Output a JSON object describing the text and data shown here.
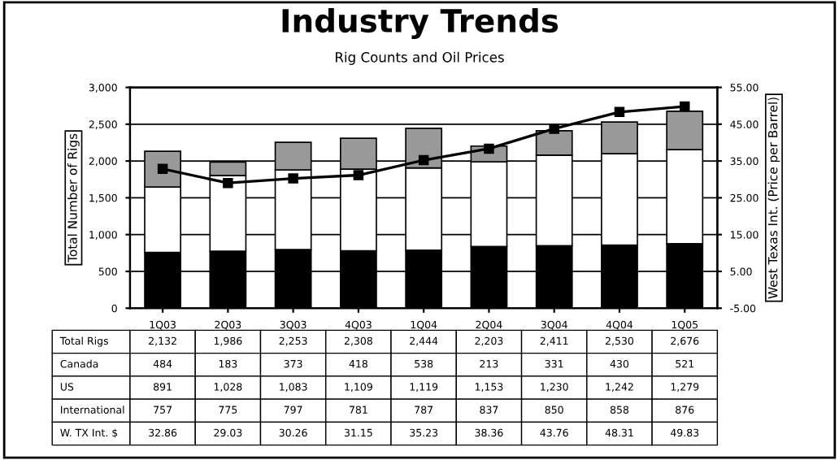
{
  "chart_data": {
    "type": "bar",
    "title": "Industry Trends",
    "subtitle": "Rig Counts and Oil Prices",
    "ylabel": "Total Number of Rigs",
    "y2label": "West Texas Int. (Price per Barrel)",
    "categories": [
      "1Q03",
      "2Q03",
      "3Q03",
      "4Q03",
      "1Q04",
      "2Q04",
      "3Q04",
      "4Q04",
      "1Q05"
    ],
    "stacked": true,
    "grid": "y",
    "legend": false,
    "ylim": [
      0,
      3000
    ],
    "yticks": [
      0,
      {
        "value": 500,
        "label": "500"
      },
      {
        "value": 1000,
        "label": "1,000"
      },
      {
        "value": 1500,
        "label": "1,500"
      },
      {
        "value": 2000,
        "label": "2,000"
      },
      {
        "value": 2500,
        "label": "2,500"
      },
      {
        "value": 3000,
        "label": "3,000"
      }
    ],
    "y2lim": [
      -5,
      55
    ],
    "y2ticks": [
      {
        "value": -5,
        "label": "-5.00"
      },
      {
        "value": 5,
        "label": "5.00"
      },
      {
        "value": 15,
        "label": "15.00"
      },
      {
        "value": 25,
        "label": "25.00"
      },
      {
        "value": 35,
        "label": "35.00"
      },
      {
        "value": 45,
        "label": "45.00"
      },
      {
        "value": 55,
        "label": "55.00"
      }
    ],
    "annotations": [
      "Total Rigs"
    ],
    "totals": [
      "2,132",
      "1,986",
      "2,253",
      "2,308",
      "2,444",
      "2,203",
      "2,411",
      "2,530",
      "2,676"
    ],
    "series": [
      {
        "name": "International",
        "color": "#000000",
        "values": [
          757,
          775,
          797,
          781,
          787,
          837,
          850,
          858,
          876
        ],
        "value_labels": [
          "757",
          "775",
          "797",
          "781",
          "787",
          "837",
          "850",
          "858",
          "876"
        ]
      },
      {
        "name": "US",
        "color": "#ffffff",
        "values": [
          891,
          1028,
          1083,
          1109,
          1119,
          1153,
          1230,
          1242,
          1279
        ],
        "value_labels": [
          "891",
          "1,028",
          "1,083",
          "1,109",
          "1,119",
          "1,153",
          "1,230",
          "1,242",
          "1,279"
        ]
      },
      {
        "name": "Canada",
        "color": "#999999",
        "values": [
          484,
          183,
          373,
          418,
          538,
          213,
          331,
          430,
          521
        ],
        "value_labels": [
          "484",
          "183",
          "373",
          "418",
          "538",
          "213",
          "331",
          "430",
          "521"
        ]
      },
      {
        "name": "W. TX Int. $",
        "type": "line",
        "axis": "y2",
        "color": "#000000",
        "marker": "square",
        "line_style": "solid",
        "values": [
          32.86,
          29.03,
          30.26,
          31.15,
          35.23,
          38.36,
          43.76,
          48.31,
          49.83
        ],
        "value_labels": [
          "32.86",
          "29.03",
          "30.26",
          "31.15",
          "35.23",
          "38.36",
          "43.76",
          "48.31",
          "49.83"
        ]
      }
    ]
  }
}
